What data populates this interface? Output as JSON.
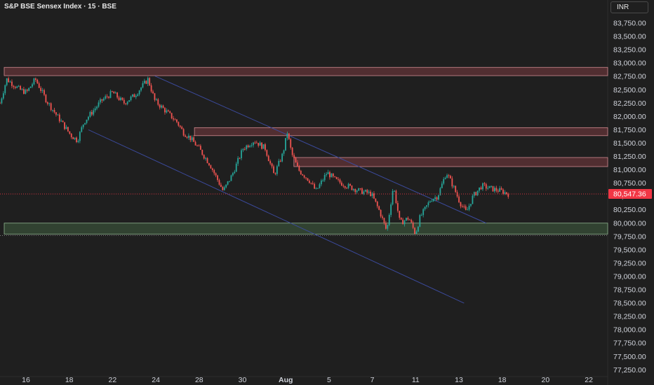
{
  "header": {
    "title": "S&P BSE Sensex Index · 15 · BSE",
    "currency": "INR"
  },
  "colors": {
    "background": "#1f1f1f",
    "up": "#26a69a",
    "down": "#ef5350",
    "supply_zone": "#7a3a40",
    "demand_zone": "#3d5a3d",
    "channel_line": "#3b4a9c",
    "price_label_bg": "#f23645",
    "grid_text": "#d1d4dc"
  },
  "chart_data": {
    "type": "candlestick",
    "title": "S&P BSE Sensex Index · 15 · BSE",
    "ylim": [
      77250,
      84000
    ],
    "y_ticks": [
      83750,
      83500,
      83250,
      83000,
      82750,
      82500,
      82250,
      82000,
      81750,
      81500,
      81250,
      81000,
      80750,
      80500,
      80250,
      80000,
      79750,
      79500,
      79250,
      79000,
      78750,
      78500,
      78250,
      78000,
      77750,
      77500,
      77250
    ],
    "y_tick_labels": [
      "83,750.00",
      "83,500.00",
      "83,250.00",
      "83,000.00",
      "82,750.00",
      "82,500.00",
      "82,250.00",
      "82,000.00",
      "81,750.00",
      "81,500.00",
      "81,250.00",
      "81,000.00",
      "80,750.00",
      "80,500.00",
      "80,250.00",
      "80,000.00",
      "79,750.00",
      "79,500.00",
      "79,250.00",
      "79,000.00",
      "78,750.00",
      "78,500.00",
      "78,250.00",
      "78,000.00",
      "77,750.00",
      "77,500.00",
      "77,250.00"
    ],
    "x_ticks": [
      {
        "label": "16",
        "pos": 0.5
      },
      {
        "label": "18",
        "pos": 2.5
      },
      {
        "label": "22",
        "pos": 4.5
      },
      {
        "label": "24",
        "pos": 6.5
      },
      {
        "label": "28",
        "pos": 8.5
      },
      {
        "label": "30",
        "pos": 10.5
      },
      {
        "label": "Aug",
        "pos": 12.5
      },
      {
        "label": "5",
        "pos": 14.5
      },
      {
        "label": "7",
        "pos": 16.5
      },
      {
        "label": "11",
        "pos": 18.5
      },
      {
        "label": "13",
        "pos": 20.5
      },
      {
        "label": "18",
        "pos": 22.5
      },
      {
        "label": "20",
        "pos": 24.5
      },
      {
        "label": "22",
        "pos": 26.5
      }
    ],
    "last_price": 80547.36,
    "last_price_label": "80,547.36",
    "anchors": [
      [
        0.0,
        82250
      ],
      [
        0.3,
        82700
      ],
      [
        0.9,
        82500
      ],
      [
        1.2,
        82450
      ],
      [
        1.6,
        82700
      ],
      [
        2.1,
        82300
      ],
      [
        2.6,
        82000
      ],
      [
        3.2,
        81650
      ],
      [
        3.5,
        81550
      ],
      [
        3.8,
        81900
      ],
      [
        4.2,
        82100
      ],
      [
        4.6,
        82300
      ],
      [
        5.1,
        82450
      ],
      [
        5.6,
        82250
      ],
      [
        6.1,
        82400
      ],
      [
        6.7,
        82700
      ],
      [
        7.0,
        82300
      ],
      [
        7.5,
        82100
      ],
      [
        8.0,
        81900
      ],
      [
        8.3,
        81700
      ],
      [
        8.6,
        81600
      ],
      [
        9.0,
        81400
      ],
      [
        9.5,
        81100
      ],
      [
        10.1,
        80600
      ],
      [
        10.5,
        80900
      ],
      [
        11.0,
        81400
      ],
      [
        11.5,
        81550
      ],
      [
        12.0,
        81400
      ],
      [
        12.4,
        80900
      ],
      [
        12.8,
        81300
      ],
      [
        13.0,
        81700
      ],
      [
        13.2,
        81300
      ],
      [
        13.5,
        81000
      ],
      [
        14.0,
        80800
      ],
      [
        14.3,
        80600
      ],
      [
        14.8,
        80950
      ],
      [
        15.2,
        80800
      ],
      [
        15.7,
        80700
      ],
      [
        16.3,
        80600
      ],
      [
        16.8,
        80550
      ],
      [
        17.2,
        80200
      ],
      [
        17.5,
        79850
      ],
      [
        17.8,
        80700
      ],
      [
        18.1,
        80000
      ],
      [
        18.5,
        80100
      ],
      [
        18.8,
        79800
      ],
      [
        19.0,
        80100
      ],
      [
        19.5,
        80450
      ],
      [
        19.8,
        80500
      ],
      [
        20.2,
        80950
      ],
      [
        20.5,
        80700
      ],
      [
        20.8,
        80400
      ],
      [
        21.1,
        80200
      ],
      [
        21.4,
        80500
      ],
      [
        21.8,
        80700
      ],
      [
        22.2,
        80650
      ],
      [
        22.7,
        80600
      ],
      [
        23.0,
        80547.36
      ]
    ],
    "zones": [
      {
        "name": "supply-zone-top",
        "type": "supply",
        "x_from": 0.0,
        "x_to": 27.5,
        "y_low": 82765,
        "y_high": 82920
      },
      {
        "name": "supply-zone-mid",
        "type": "supply",
        "x_from": 8.8,
        "x_to": 27.5,
        "y_low": 81640,
        "y_high": 81790
      },
      {
        "name": "supply-zone-low",
        "type": "supply",
        "x_from": 13.3,
        "x_to": 27.5,
        "y_low": 81060,
        "y_high": 81230
      },
      {
        "name": "demand-zone",
        "type": "demand",
        "x_from": 0.0,
        "x_to": 27.5,
        "y_low": 79795,
        "y_high": 80000
      }
    ],
    "trendlines": [
      {
        "name": "channel-upper",
        "x1": 7.0,
        "y1": 82760,
        "x2": 22.0,
        "y2": 80000
      },
      {
        "name": "channel-lower",
        "x1": 4.0,
        "y1": 81750,
        "x2": 21.0,
        "y2": 78500
      }
    ],
    "price_line": {
      "y": 80547.36
    }
  }
}
